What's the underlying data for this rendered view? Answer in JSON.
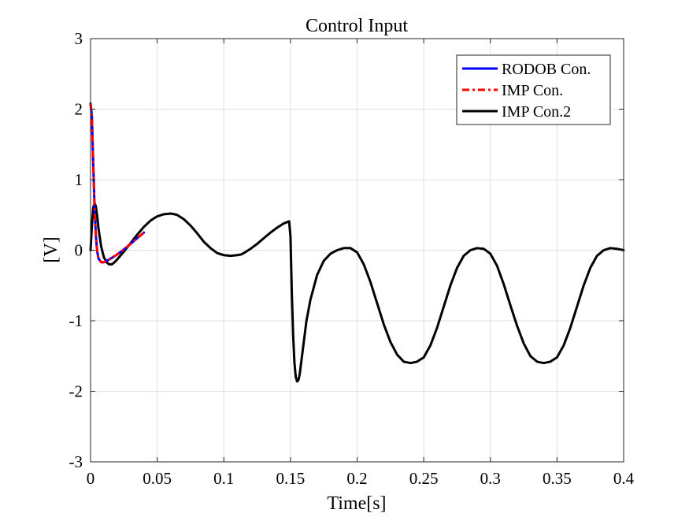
{
  "chart_data": {
    "type": "line",
    "title": "Control Input",
    "xlabel": "Time[s]",
    "ylabel": "[V]",
    "xlim": [
      0,
      0.4
    ],
    "ylim": [
      -3,
      3
    ],
    "xticks": [
      0,
      0.05,
      0.1,
      0.15,
      0.2,
      0.25,
      0.3,
      0.35,
      0.4
    ],
    "xtick_labels": [
      "0",
      "0.05",
      "0.1",
      "0.15",
      "0.2",
      "0.25",
      "0.3",
      "0.35",
      "0.4"
    ],
    "yticks": [
      -3,
      -2,
      -1,
      0,
      1,
      2,
      3
    ],
    "ytick_labels": [
      "-3",
      "-2",
      "-1",
      "0",
      "1",
      "2",
      "3"
    ],
    "grid": true,
    "legend_position": "top-right",
    "series": [
      {
        "name": "RODOB Con.",
        "color": "#0000ff",
        "style": "solid",
        "x": [
          0,
          0.001,
          0.002,
          0.003,
          0.004,
          0.005,
          0.006,
          0.008,
          0.01,
          0.012,
          0.015,
          0.02,
          0.025,
          0.03,
          0.035,
          0.04
        ],
        "y": [
          2.08,
          1.9,
          1.25,
          0.6,
          0.2,
          -0.02,
          -0.12,
          -0.17,
          -0.17,
          -0.15,
          -0.12,
          -0.06,
          0.01,
          0.09,
          0.17,
          0.25
        ]
      },
      {
        "name": "IMP Con.",
        "color": "#ff0000",
        "style": "dashed",
        "x": [
          0,
          0.001,
          0.002,
          0.003,
          0.004,
          0.005,
          0.006,
          0.008,
          0.01,
          0.012,
          0.015,
          0.02,
          0.025,
          0.03,
          0.035,
          0.04
        ],
        "y": [
          2.08,
          1.9,
          1.25,
          0.6,
          0.2,
          -0.02,
          -0.12,
          -0.17,
          -0.17,
          -0.15,
          -0.12,
          -0.06,
          0.01,
          0.09,
          0.17,
          0.25
        ]
      },
      {
        "name": "IMP Con.2",
        "color": "#000000",
        "style": "solid",
        "x": [
          0,
          0.001,
          0.002,
          0.003,
          0.004,
          0.005,
          0.006,
          0.008,
          0.01,
          0.012,
          0.014,
          0.016,
          0.018,
          0.02,
          0.025,
          0.03,
          0.035,
          0.04,
          0.045,
          0.05,
          0.055,
          0.06,
          0.063,
          0.065,
          0.07,
          0.075,
          0.08,
          0.085,
          0.09,
          0.095,
          0.1,
          0.105,
          0.11,
          0.113,
          0.115,
          0.12,
          0.125,
          0.13,
          0.135,
          0.14,
          0.145,
          0.149,
          0.15,
          0.151,
          0.152,
          0.153,
          0.154,
          0.155,
          0.156,
          0.157,
          0.158,
          0.16,
          0.162,
          0.165,
          0.17,
          0.175,
          0.18,
          0.185,
          0.19,
          0.195,
          0.2,
          0.205,
          0.21,
          0.215,
          0.22,
          0.225,
          0.23,
          0.235,
          0.24,
          0.245,
          0.25,
          0.255,
          0.26,
          0.265,
          0.27,
          0.275,
          0.28,
          0.285,
          0.29,
          0.295,
          0.3,
          0.305,
          0.31,
          0.315,
          0.32,
          0.325,
          0.33,
          0.335,
          0.34,
          0.345,
          0.35,
          0.355,
          0.36,
          0.365,
          0.37,
          0.375,
          0.38,
          0.385,
          0.39,
          0.395,
          0.4
        ],
        "y": [
          0.0,
          0.35,
          0.6,
          0.67,
          0.62,
          0.48,
          0.3,
          0.05,
          -0.1,
          -0.17,
          -0.2,
          -0.2,
          -0.17,
          -0.13,
          -0.02,
          0.1,
          0.22,
          0.33,
          0.42,
          0.48,
          0.51,
          0.52,
          0.51,
          0.5,
          0.44,
          0.35,
          0.24,
          0.12,
          0.03,
          -0.04,
          -0.07,
          -0.08,
          -0.07,
          -0.06,
          -0.04,
          0.02,
          0.09,
          0.17,
          0.25,
          0.32,
          0.38,
          0.41,
          0.2,
          -0.6,
          -1.2,
          -1.6,
          -1.8,
          -1.86,
          -1.84,
          -1.75,
          -1.6,
          -1.3,
          -1.0,
          -0.7,
          -0.35,
          -0.15,
          -0.05,
          0.0,
          0.03,
          0.03,
          -0.03,
          -0.2,
          -0.45,
          -0.75,
          -1.05,
          -1.3,
          -1.48,
          -1.58,
          -1.6,
          -1.58,
          -1.52,
          -1.35,
          -1.1,
          -0.8,
          -0.5,
          -0.25,
          -0.08,
          0.0,
          0.03,
          0.02,
          -0.05,
          -0.22,
          -0.48,
          -0.78,
          -1.07,
          -1.32,
          -1.5,
          -1.58,
          -1.6,
          -1.58,
          -1.52,
          -1.35,
          -1.1,
          -0.8,
          -0.5,
          -0.25,
          -0.08,
          0.0,
          0.03,
          0.02,
          0.0
        ]
      }
    ]
  }
}
